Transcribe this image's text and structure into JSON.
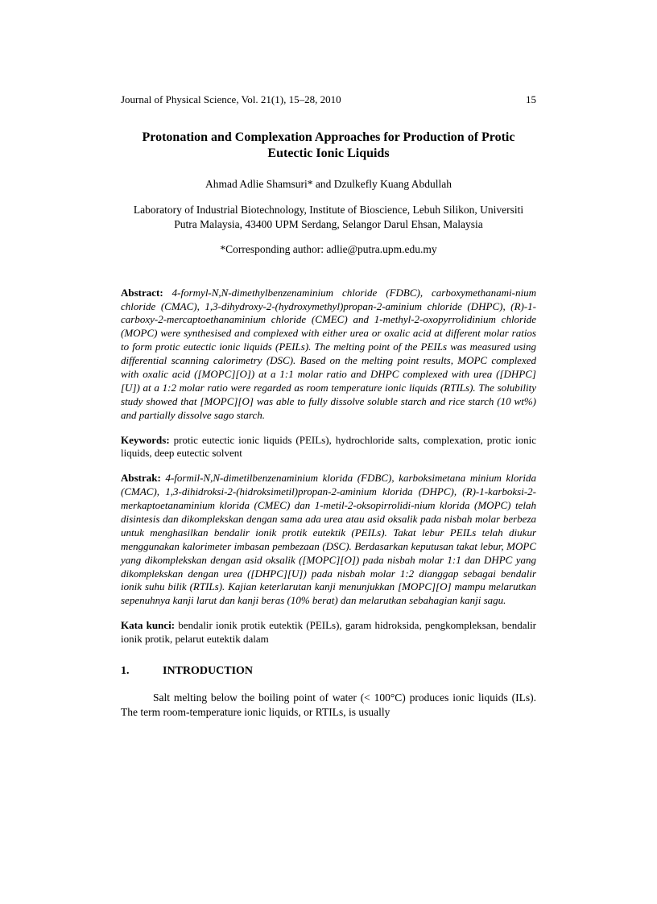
{
  "header": {
    "journal": "Journal of Physical Science, Vol. 21(1), 15–28, 2010",
    "page": "15"
  },
  "title": "Protonation and Complexation Approaches for Production of Protic Eutectic Ionic Liquids",
  "authors": "Ahmad Adlie Shamsuri* and Dzulkefly Kuang Abdullah",
  "affiliation": "Laboratory of Industrial Biotechnology, Institute of Bioscience, Lebuh Silikon, Universiti Putra Malaysia, 43400 UPM Serdang, Selangor Darul Ehsan, Malaysia",
  "corresponding": "*Corresponding author: adlie@putra.upm.edu.my",
  "abstract_en": {
    "label": "Abstract:",
    "text": "4-formyl-N,N-dimethylbenzenaminium chloride (FDBC), carboxymethanami-nium chloride (CMAC), 1,3-dihydroxy-2-(hydroxymethyl)propan-2-aminium chloride (DHPC), (R)-1-carboxy-2-mercaptoethanaminium chloride (CMEC) and 1-methyl-2-oxopyrrolidinium chloride (MOPC) were synthesised and complexed with either urea or oxalic acid at different molar ratios to form protic eutectic ionic liquids (PEILs). The melting point of the PEILs was measured using differential scanning calorimetry (DSC). Based on the melting point results, MOPC complexed with oxalic acid ([MOPC][O]) at a 1:1 molar ratio and DHPC complexed with urea ([DHPC][U]) at a 1:2 molar ratio were regarded as room temperature ionic liquids (RTILs). The solubility study showed that [MOPC][O] was able to fully dissolve soluble starch and rice starch (10 wt%) and partially dissolve sago starch."
  },
  "keywords_en": {
    "label": "Keywords:",
    "text": "protic eutectic ionic liquids (PEILs), hydrochloride salts, complexation, protic ionic liquids, deep eutectic solvent"
  },
  "abstract_ms": {
    "label": "Abstrak:",
    "text": "4-formil-N,N-dimetilbenzenaminium klorida (FDBC), karboksimetana minium klorida (CMAC), 1,3-dihidroksi-2-(hidroksimetil)propan-2-aminium klorida (DHPC), (R)-1-karboksi-2-merkaptoetanaminium klorida (CMEC) dan 1-metil-2-oksopirrolidi-nium klorida (MOPC) telah disintesis dan dikomplekskan dengan sama ada urea atau asid oksalik pada nisbah molar berbeza untuk menghasilkan bendalir ionik protik eutektik (PEILs). Takat lebur PEILs telah diukur menggunakan kalorimeter imbasan pembezaan (DSC). Berdasarkan keputusan takat lebur, MOPC yang dikomplekskan dengan asid oksalik ([MOPC][O]) pada nisbah molar 1:1 dan DHPC yang dikomplekskan dengan urea ([DHPC][U]) pada nisbah molar 1:2 dianggap sebagai bendalir ionik suhu bilik (RTILs). Kajian keterlarutan kanji menunjukkan [MOPC][O] mampu melarutkan sepenuhnya kanji larut dan kanji beras (10% berat) dan melarutkan sebahagian kanji sagu."
  },
  "keywords_ms": {
    "label": "Kata kunci:",
    "text": "bendalir ionik protik eutektik (PEILs), garam hidroksida, pengkompleksan, bendalir ionik protik, pelarut eutektik dalam"
  },
  "section1": {
    "num": "1.",
    "heading": "INTRODUCTION",
    "para": "Salt melting below the boiling point of water (< 100°C) produces ionic liquids (ILs). The term room-temperature ionic liquids, or RTILs, is usually"
  }
}
